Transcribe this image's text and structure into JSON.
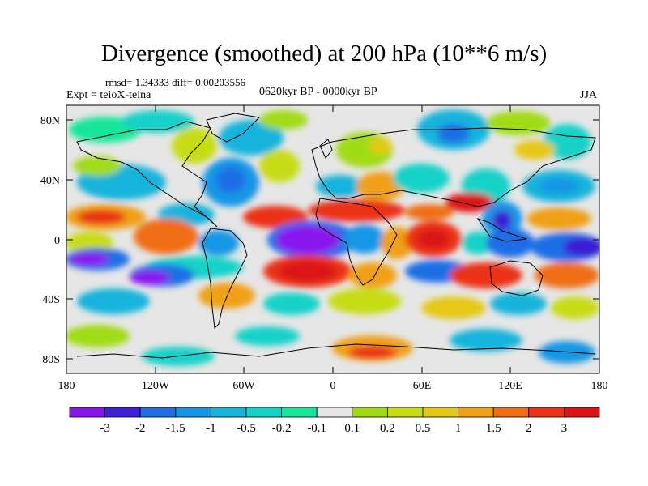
{
  "title": "Divergence (smoothed) at 200 hPa (10**6 m/s)",
  "stats": {
    "line": "rmsd= 1.34333 diff= 0.00203556"
  },
  "experiment": "Expt = teioX-teina",
  "period": "0620kyr BP - 0000kyr BP",
  "season": "JJA",
  "map": {
    "lat_ticks": [
      "80N",
      "40N",
      "0",
      "40S",
      "80S"
    ],
    "lon_ticks": [
      "180",
      "120W",
      "60W",
      "0",
      "60E",
      "120E",
      "180"
    ]
  },
  "colorbar": {
    "labels": [
      "-3",
      "-2",
      "-1.5",
      "-1",
      "-0.5",
      "-0.2",
      "-0.1",
      "0.1",
      "0.2",
      "0.5",
      "1",
      "1.5",
      "2",
      "3"
    ],
    "colors": [
      "#8a14ee",
      "#3c1fd6",
      "#1e6ee6",
      "#1496e6",
      "#14b4dc",
      "#14d2c8",
      "#14e69a",
      "#e6e6e6",
      "#a0dc14",
      "#c8dc14",
      "#e6c814",
      "#f0a014",
      "#f06e14",
      "#eb3214",
      "#dc1414"
    ]
  }
}
